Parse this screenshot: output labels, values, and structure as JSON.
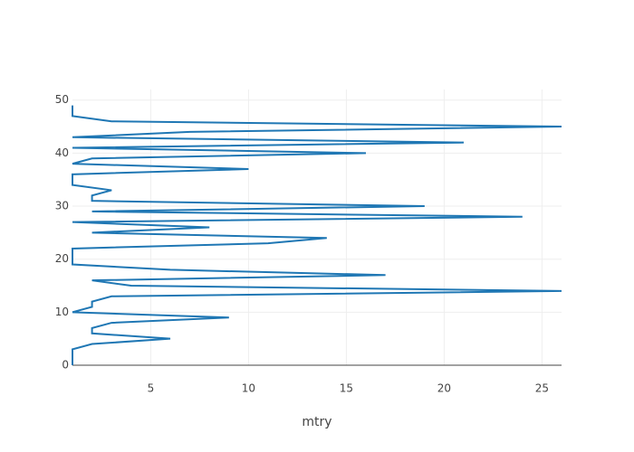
{
  "chart_data": {
    "type": "line",
    "x_label": "mtry",
    "x": [
      1,
      1,
      1,
      1,
      2,
      6,
      2,
      2,
      3,
      9,
      1,
      2,
      2,
      3,
      26,
      4,
      2,
      17,
      6,
      1,
      1,
      1,
      1,
      11,
      14,
      2,
      8,
      1,
      24,
      2,
      19,
      2,
      2,
      3,
      1,
      1,
      1,
      10,
      1,
      2,
      16,
      1,
      21,
      1,
      7,
      26,
      3,
      1,
      1,
      1
    ],
    "y": [
      0,
      1,
      2,
      3,
      4,
      5,
      6,
      7,
      8,
      9,
      10,
      11,
      12,
      13,
      14,
      15,
      16,
      17,
      18,
      19,
      20,
      21,
      22,
      23,
      24,
      25,
      26,
      27,
      28,
      29,
      30,
      31,
      32,
      33,
      34,
      35,
      36,
      37,
      38,
      39,
      40,
      41,
      42,
      43,
      44,
      45,
      46,
      47,
      48,
      49
    ],
    "color": "#1f77b4",
    "xlim": [
      1,
      26
    ],
    "xticks": [
      5,
      10,
      15,
      20,
      25
    ],
    "ylim": [
      0,
      52
    ],
    "yticks": [
      0,
      10,
      20,
      30,
      40,
      50
    ],
    "grid": true
  }
}
